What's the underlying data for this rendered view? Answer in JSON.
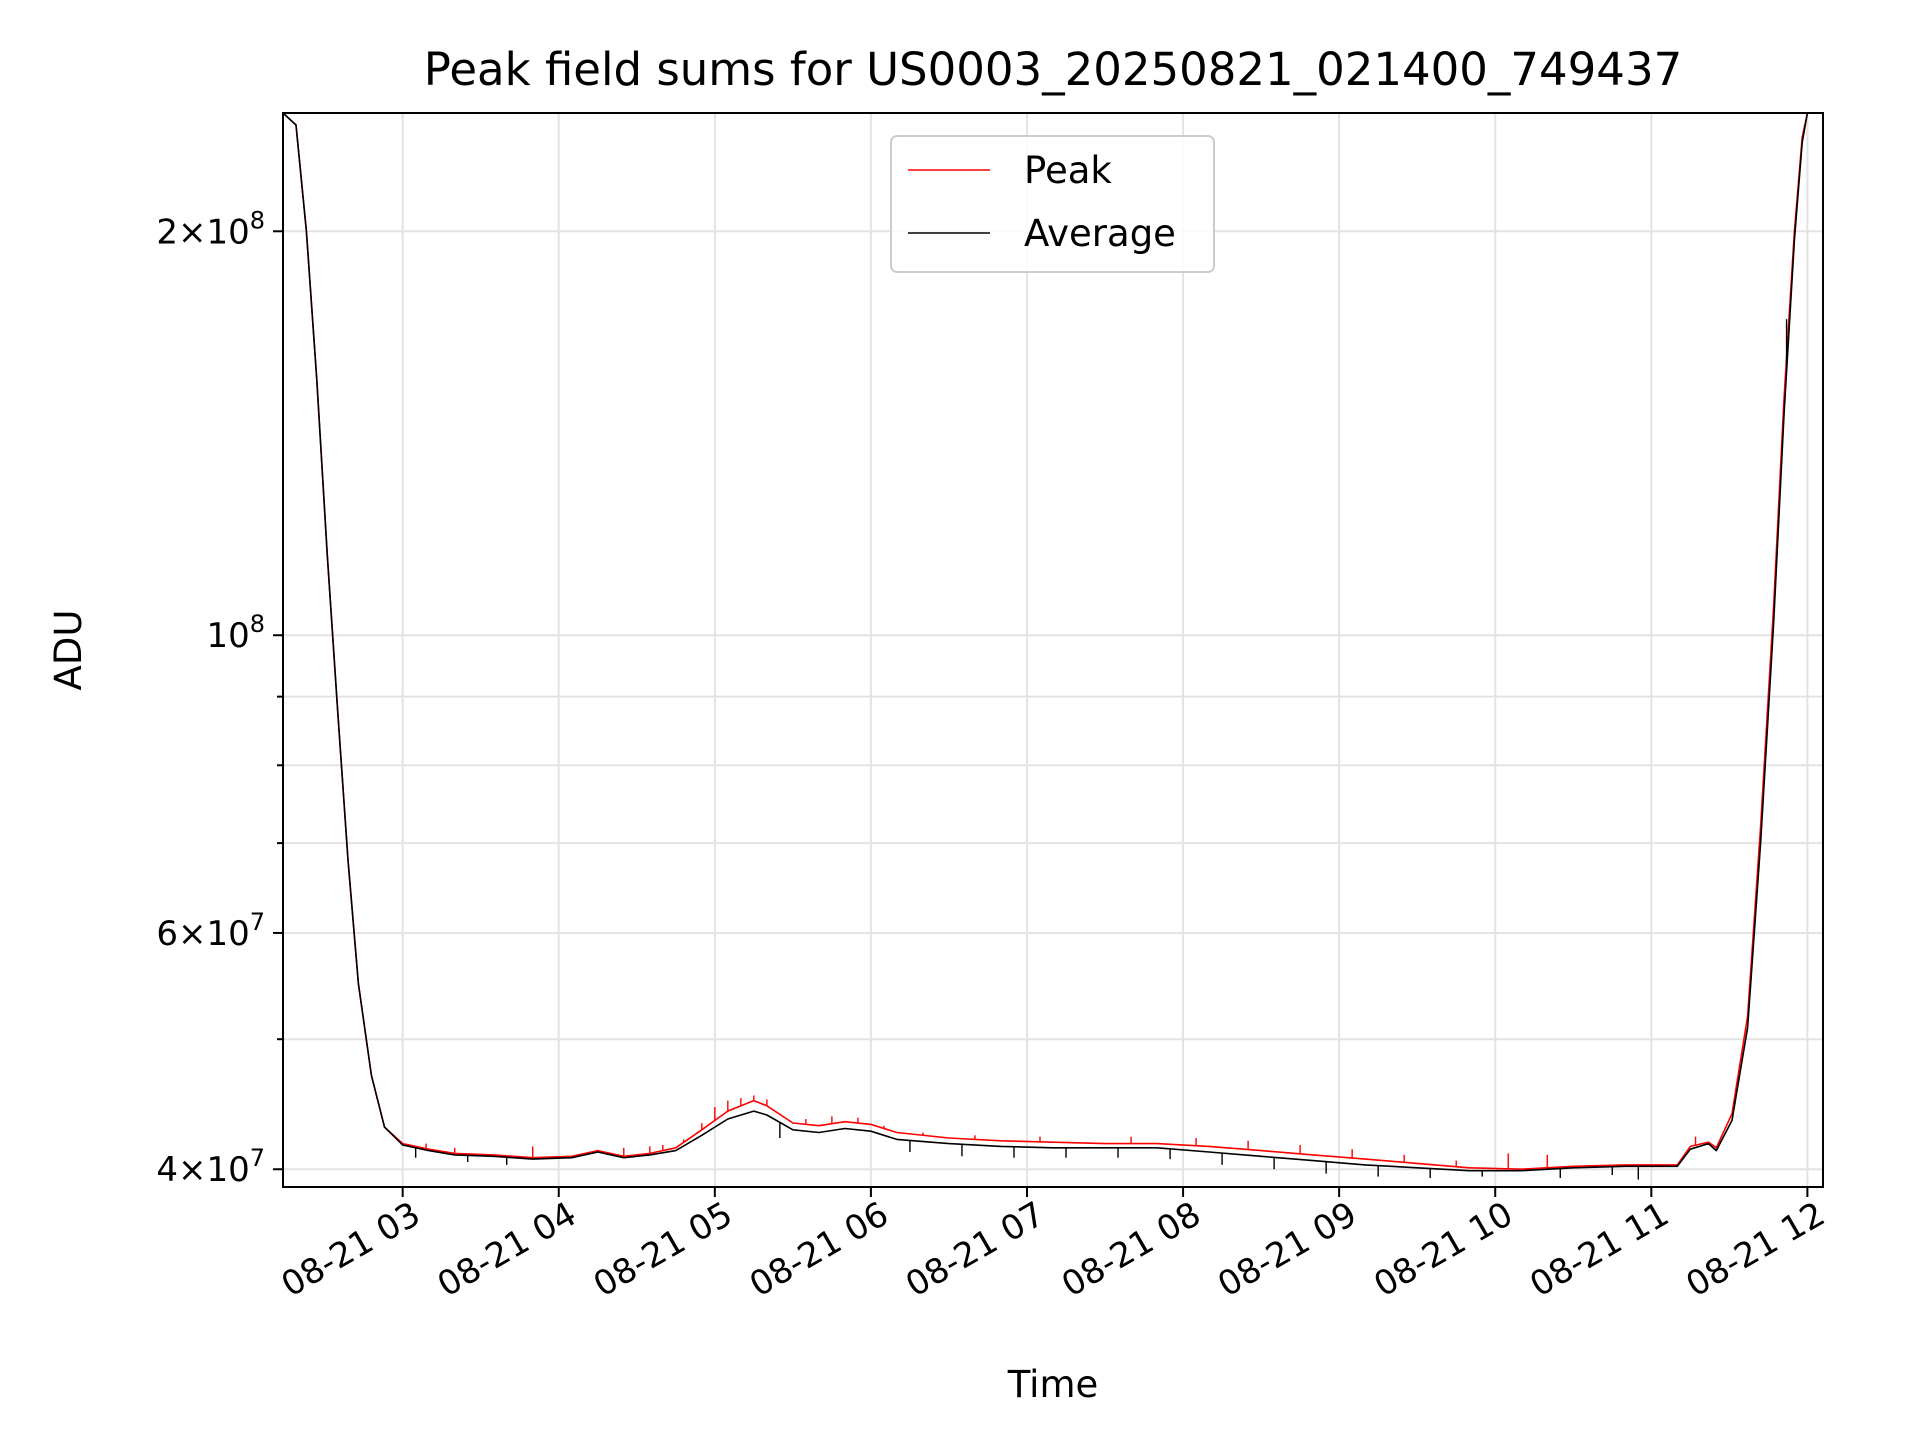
{
  "chart_data": {
    "type": "line",
    "title": "Peak field sums for US0003_20250821_021400_749437",
    "xlabel": "Time",
    "ylabel": "ADU",
    "y_scale": "log",
    "grid": true,
    "legend_position": "upper-center",
    "x_start": "08-21 02:14",
    "x_end": "08-21 12:06",
    "xlim": [
      "2025-08-21 02:14",
      "2025-08-21 12:06"
    ],
    "ylim": [
      38800000,
      245000000
    ],
    "x_ticks": [
      {
        "hour": 3,
        "label": "08-21 03"
      },
      {
        "hour": 4,
        "label": "08-21 04"
      },
      {
        "hour": 5,
        "label": "08-21 05"
      },
      {
        "hour": 6,
        "label": "08-21 06"
      },
      {
        "hour": 7,
        "label": "08-21 07"
      },
      {
        "hour": 8,
        "label": "08-21 08"
      },
      {
        "hour": 9,
        "label": "08-21 09"
      },
      {
        "hour": 10,
        "label": "08-21 10"
      },
      {
        "hour": 11,
        "label": "08-21 11"
      },
      {
        "hour": 12,
        "label": "08-21 12"
      }
    ],
    "y_major_ticks": [
      {
        "value": 40000000,
        "base": "4×10",
        "exp": "7"
      },
      {
        "value": 60000000,
        "base": "6×10",
        "exp": "7"
      },
      {
        "value": 100000000,
        "base": "10",
        "exp": "8"
      },
      {
        "value": 200000000,
        "base": "2×10",
        "exp": "8"
      }
    ],
    "y_minor_ticks": [
      50000000,
      70000000,
      80000000,
      90000000
    ],
    "series": [
      {
        "name": "Peak",
        "color": "#ff0000",
        "points": [
          [
            "02:14",
            245000000
          ],
          [
            "02:19",
            240000000
          ],
          [
            "02:23",
            200000000
          ],
          [
            "02:27",
            155000000
          ],
          [
            "02:31",
            115000000
          ],
          [
            "02:35",
            88000000
          ],
          [
            "02:39",
            68000000
          ],
          [
            "02:43",
            55000000
          ],
          [
            "02:48",
            47000000
          ],
          [
            "02:53",
            43000000
          ],
          [
            "03:00",
            41800000
          ],
          [
            "03:10",
            41400000
          ],
          [
            "03:20",
            41100000
          ],
          [
            "03:35",
            41000000
          ],
          [
            "03:50",
            40800000
          ],
          [
            "04:05",
            40900000
          ],
          [
            "04:15",
            41300000
          ],
          [
            "04:25",
            40900000
          ],
          [
            "04:35",
            41100000
          ],
          [
            "04:45",
            41500000
          ],
          [
            "04:55",
            42800000
          ],
          [
            "05:05",
            44200000
          ],
          [
            "05:15",
            45000000
          ],
          [
            "05:20",
            44600000
          ],
          [
            "05:30",
            43300000
          ],
          [
            "05:40",
            43100000
          ],
          [
            "05:50",
            43400000
          ],
          [
            "06:00",
            43200000
          ],
          [
            "06:10",
            42600000
          ],
          [
            "06:30",
            42200000
          ],
          [
            "06:50",
            42000000
          ],
          [
            "07:10",
            41900000
          ],
          [
            "07:30",
            41800000
          ],
          [
            "07:50",
            41800000
          ],
          [
            "08:10",
            41600000
          ],
          [
            "08:30",
            41300000
          ],
          [
            "08:50",
            41000000
          ],
          [
            "09:10",
            40700000
          ],
          [
            "09:30",
            40400000
          ],
          [
            "09:50",
            40100000
          ],
          [
            "10:10",
            40000000
          ],
          [
            "10:30",
            40200000
          ],
          [
            "10:50",
            40300000
          ],
          [
            "11:10",
            40300000
          ],
          [
            "11:15",
            41600000
          ],
          [
            "11:22",
            41900000
          ],
          [
            "11:25",
            41500000
          ],
          [
            "11:31",
            44000000
          ],
          [
            "11:37",
            52000000
          ],
          [
            "11:42",
            72000000
          ],
          [
            "11:47",
            105000000
          ],
          [
            "11:51",
            150000000
          ],
          [
            "11:55",
            200000000
          ],
          [
            "11:58",
            235000000
          ],
          [
            "12:00",
            245000000
          ],
          [
            "12:06",
            245000000
          ]
        ],
        "spikes": [
          [
            "03:09",
            41800000
          ],
          [
            "03:20",
            41500000
          ],
          [
            "03:50",
            41600000
          ],
          [
            "04:25",
            41500000
          ],
          [
            "04:35",
            41600000
          ],
          [
            "04:40",
            41700000
          ],
          [
            "04:48",
            42100000
          ],
          [
            "04:55",
            43300000
          ],
          [
            "05:00",
            44500000
          ],
          [
            "05:05",
            45000000
          ],
          [
            "05:10",
            45200000
          ],
          [
            "05:15",
            45400000
          ],
          [
            "05:20",
            45100000
          ],
          [
            "05:35",
            43600000
          ],
          [
            "05:45",
            43800000
          ],
          [
            "05:55",
            43700000
          ],
          [
            "06:05",
            43100000
          ],
          [
            "06:20",
            42600000
          ],
          [
            "06:40",
            42400000
          ],
          [
            "07:05",
            42300000
          ],
          [
            "07:40",
            42300000
          ],
          [
            "08:05",
            42200000
          ],
          [
            "08:25",
            42000000
          ],
          [
            "08:45",
            41700000
          ],
          [
            "09:05",
            41400000
          ],
          [
            "09:25",
            41000000
          ],
          [
            "09:45",
            40600000
          ],
          [
            "10:05",
            41100000
          ],
          [
            "10:20",
            41000000
          ],
          [
            "11:17",
            42300000
          ]
        ]
      },
      {
        "name": "Average",
        "color": "#000000",
        "points": [
          [
            "02:14",
            245000000
          ],
          [
            "02:19",
            240000000
          ],
          [
            "02:23",
            200000000
          ],
          [
            "02:27",
            155000000
          ],
          [
            "02:31",
            115000000
          ],
          [
            "02:35",
            88000000
          ],
          [
            "02:39",
            68000000
          ],
          [
            "02:43",
            55000000
          ],
          [
            "02:48",
            47000000
          ],
          [
            "02:53",
            43000000
          ],
          [
            "03:00",
            41700000
          ],
          [
            "03:10",
            41300000
          ],
          [
            "03:20",
            41000000
          ],
          [
            "03:35",
            40900000
          ],
          [
            "03:50",
            40700000
          ],
          [
            "04:05",
            40800000
          ],
          [
            "04:15",
            41200000
          ],
          [
            "04:25",
            40800000
          ],
          [
            "04:35",
            41000000
          ],
          [
            "04:45",
            41300000
          ],
          [
            "04:55",
            42400000
          ],
          [
            "05:05",
            43600000
          ],
          [
            "05:15",
            44200000
          ],
          [
            "05:20",
            43900000
          ],
          [
            "05:30",
            42800000
          ],
          [
            "05:40",
            42600000
          ],
          [
            "05:50",
            42900000
          ],
          [
            "06:00",
            42700000
          ],
          [
            "06:10",
            42100000
          ],
          [
            "06:30",
            41800000
          ],
          [
            "06:50",
            41600000
          ],
          [
            "07:10",
            41500000
          ],
          [
            "07:30",
            41500000
          ],
          [
            "07:50",
            41500000
          ],
          [
            "08:10",
            41200000
          ],
          [
            "08:30",
            40900000
          ],
          [
            "08:50",
            40600000
          ],
          [
            "09:10",
            40300000
          ],
          [
            "09:30",
            40100000
          ],
          [
            "09:50",
            39900000
          ],
          [
            "10:10",
            39900000
          ],
          [
            "10:30",
            40100000
          ],
          [
            "10:50",
            40200000
          ],
          [
            "11:10",
            40200000
          ],
          [
            "11:15",
            41400000
          ],
          [
            "11:22",
            41800000
          ],
          [
            "11:25",
            41300000
          ],
          [
            "11:31",
            43500000
          ],
          [
            "11:37",
            51000000
          ],
          [
            "11:42",
            70000000
          ],
          [
            "11:47",
            102000000
          ],
          [
            "11:51",
            146000000
          ],
          [
            "11:55",
            197000000
          ],
          [
            "11:58",
            233000000
          ],
          [
            "12:00",
            245000000
          ],
          [
            "12:06",
            245000000
          ]
        ],
        "dips": [
          [
            "03:05",
            40800000
          ],
          [
            "03:25",
            40500000
          ],
          [
            "03:40",
            40300000
          ],
          [
            "05:25",
            42200000
          ],
          [
            "06:15",
            41200000
          ],
          [
            "06:35",
            40900000
          ],
          [
            "06:55",
            40800000
          ],
          [
            "07:15",
            40800000
          ],
          [
            "07:35",
            40800000
          ],
          [
            "07:55",
            40700000
          ],
          [
            "08:15",
            40300000
          ],
          [
            "08:35",
            40000000
          ],
          [
            "08:55",
            39700000
          ],
          [
            "09:15",
            39500000
          ],
          [
            "09:35",
            39400000
          ],
          [
            "09:55",
            39500000
          ],
          [
            "10:25",
            39400000
          ],
          [
            "10:45",
            39600000
          ],
          [
            "10:55",
            39300000
          ],
          [
            "11:52",
            172000000
          ]
        ]
      }
    ]
  }
}
